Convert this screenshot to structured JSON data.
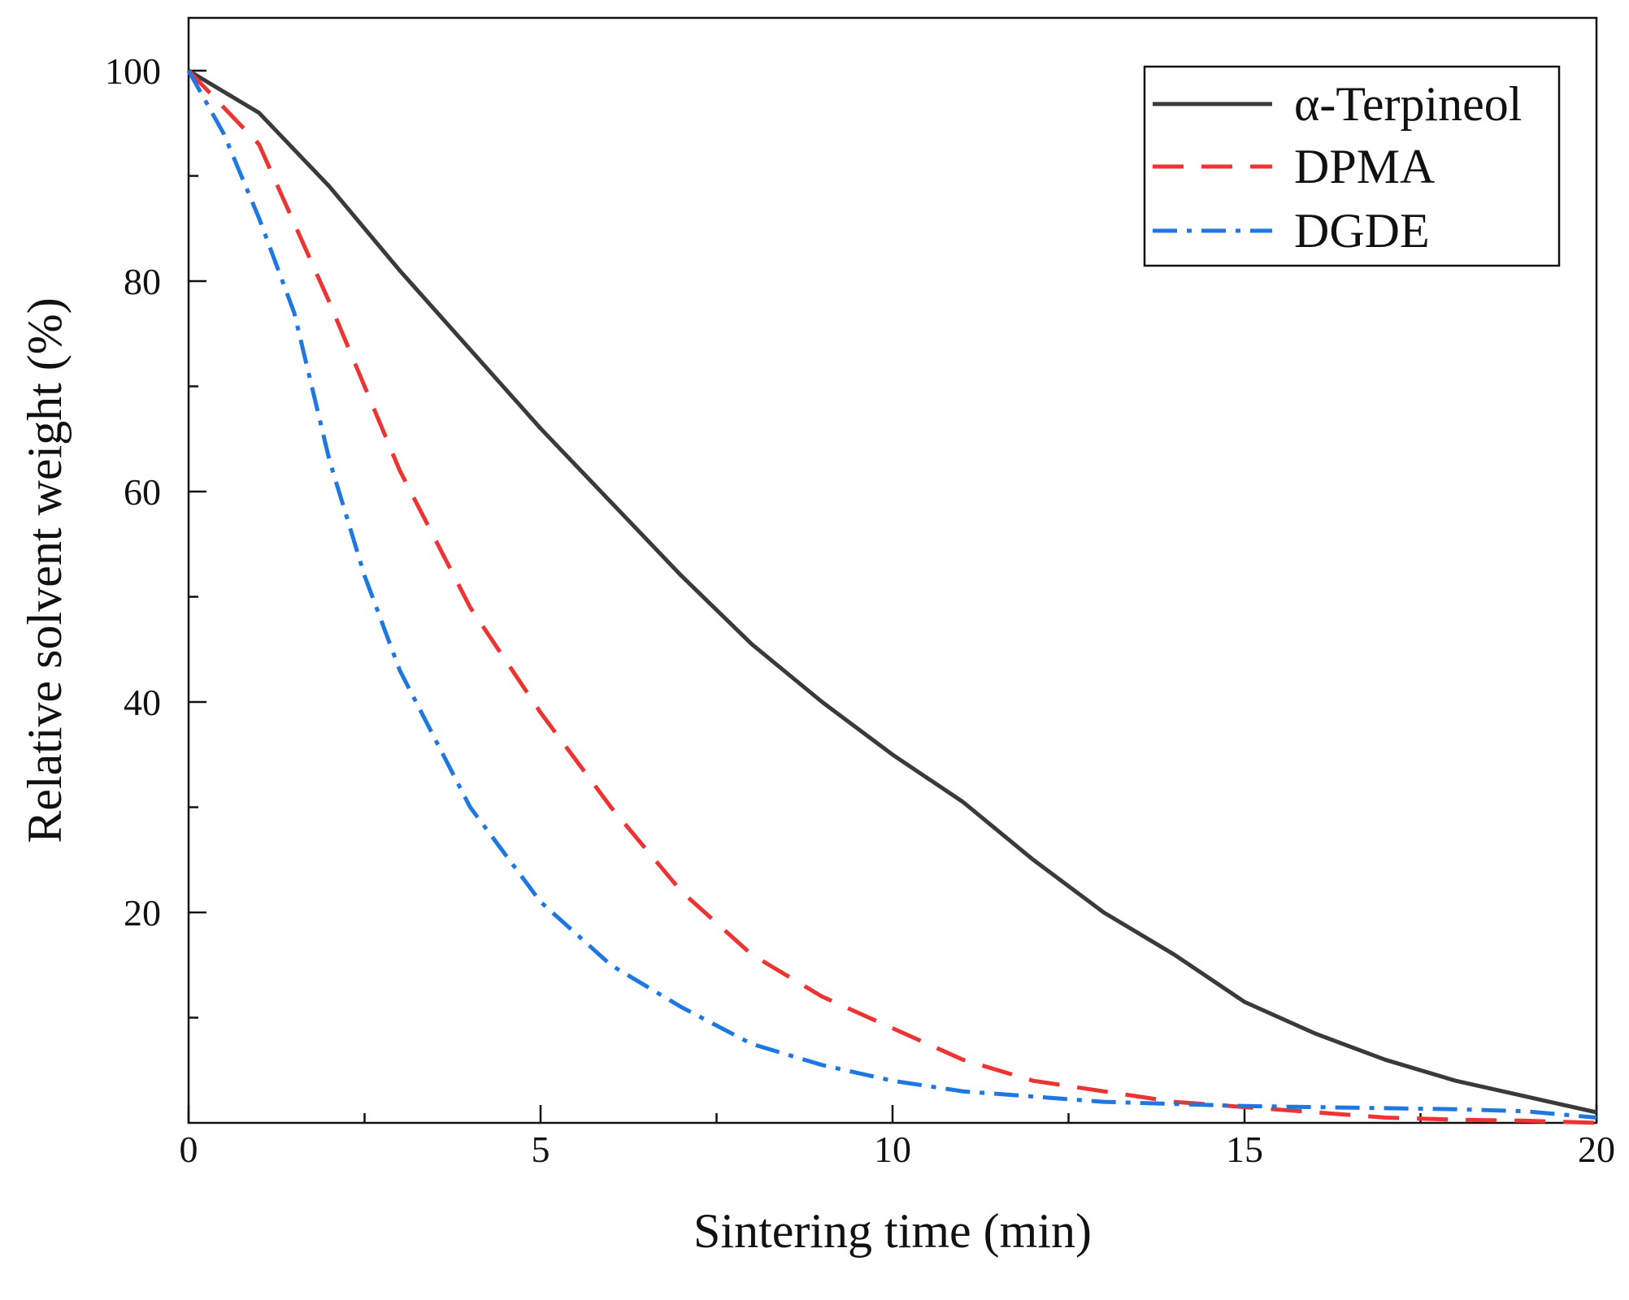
{
  "chart_data": {
    "type": "line",
    "title": "",
    "xlabel": "Sintering time (min)",
    "ylabel": "Relative solvent weight (%)",
    "xlim": [
      0,
      20
    ],
    "ylim": [
      0,
      105
    ],
    "xticks": [
      0,
      5,
      10,
      15,
      20
    ],
    "xtick_labels": [
      "0",
      "5",
      "10",
      "15",
      "20"
    ],
    "yticks": [
      20,
      40,
      60,
      80,
      100
    ],
    "ytick_labels": [
      "20",
      "40",
      "60",
      "80",
      "100"
    ],
    "grid": false,
    "legend_position": "top-right",
    "series": [
      {
        "name": "α-Terpineol",
        "color": "#3a3a3a",
        "style": "solid",
        "x": [
          0,
          1,
          2,
          3,
          4,
          5,
          6,
          7,
          8,
          9,
          10,
          11,
          12,
          13,
          14,
          15,
          16,
          17,
          18,
          19,
          20
        ],
        "values": [
          100,
          96,
          89,
          81,
          73.5,
          66,
          59,
          52,
          45.5,
          40,
          35,
          30.5,
          25,
          20,
          16,
          11.5,
          8.5,
          6,
          4,
          2.5,
          1
        ]
      },
      {
        "name": "DPMA",
        "color": "#ee3333",
        "style": "dashed",
        "x": [
          0,
          1,
          2,
          3,
          4,
          5,
          6,
          7,
          8,
          9,
          10,
          11,
          12,
          13,
          14,
          15,
          16,
          17,
          18,
          19,
          20
        ],
        "values": [
          100,
          93,
          78,
          62,
          49,
          39,
          30,
          22,
          16,
          12,
          9,
          6,
          4,
          3,
          2,
          1.5,
          1,
          0.5,
          0.3,
          0.2,
          0
        ]
      },
      {
        "name": "DGDE",
        "color": "#1f77e0",
        "style": "dashdot",
        "x": [
          0,
          0.5,
          1,
          1.5,
          2,
          2.5,
          3,
          4,
          5,
          6,
          7,
          8,
          9,
          10,
          11,
          12,
          13,
          14,
          15,
          16,
          17,
          18,
          19,
          20
        ],
        "values": [
          100,
          94,
          86,
          77,
          63,
          52,
          43,
          30,
          21,
          15,
          11,
          7.5,
          5.5,
          4,
          3,
          2.5,
          2,
          1.8,
          1.6,
          1.5,
          1.4,
          1.3,
          1.1,
          0.5
        ]
      }
    ]
  }
}
